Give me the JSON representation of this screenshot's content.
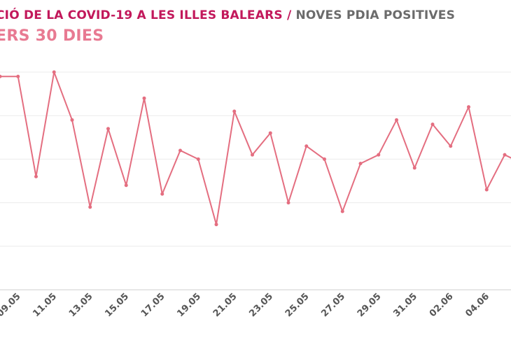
{
  "header": {
    "title_main": "CIÓ DE LA COVID-19 A LES ILLES BALEARS",
    "title_sep": " / ",
    "title_rest": "NOVES PDIA POSITIVES",
    "subtitle": "ERS 30 DIES"
  },
  "colors": {
    "title": "#c2185b",
    "title_rest": "#6b6b6b",
    "subtitle": "#e87a92",
    "series": "#e46e80"
  },
  "chart_data": {
    "type": "line",
    "title": "CIÓ DE LA COVID-19 A LES ILLES BALEARS / NOVES PDIA POSITIVES",
    "subtitle": "ERS 30 DIES",
    "xlabel": "",
    "ylabel": "",
    "grid": true,
    "ylim": [
      0,
      5
    ],
    "y_grid_values": [
      1,
      2,
      3,
      4,
      5
    ],
    "x_tick_labels": [
      "09.05",
      "11.05",
      "13.05",
      "15.05",
      "17.05",
      "19.05",
      "21.05",
      "23.05",
      "25.05",
      "27.05",
      "29.05",
      "31.05",
      "02.06",
      "04.06"
    ],
    "series": [
      {
        "values": [
          4.9,
          4.9,
          2.6,
          5.0,
          3.9,
          1.9,
          3.7,
          2.4,
          4.4,
          2.2,
          3.2,
          3.0,
          1.5,
          4.1,
          3.1,
          3.6,
          2.0,
          3.3,
          3.0,
          1.8,
          2.9,
          3.1,
          3.9,
          2.8,
          3.8,
          3.3,
          4.2,
          2.3,
          3.1,
          2.9
        ]
      }
    ]
  }
}
